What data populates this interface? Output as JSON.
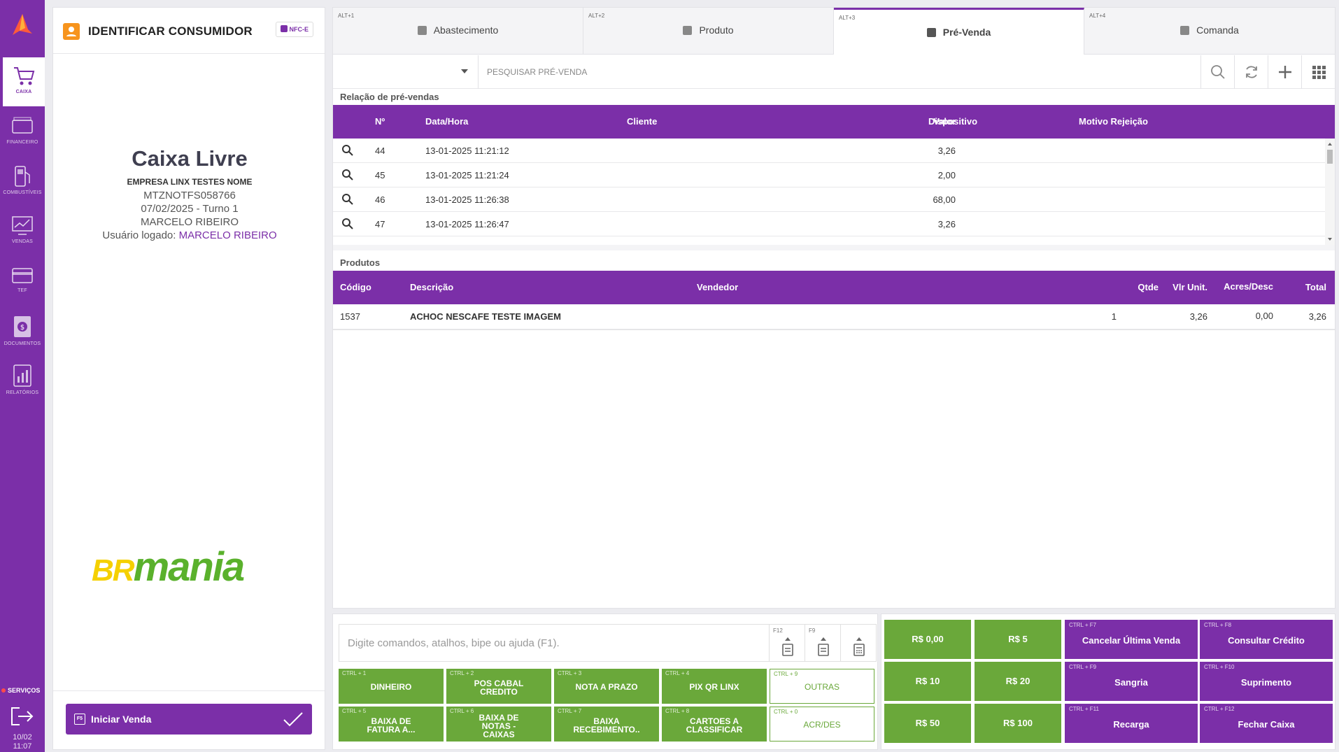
{
  "nav": {
    "items": [
      {
        "label": "CAIXA",
        "icon": "cart-icon"
      },
      {
        "label": "FINANCEIRO",
        "icon": "money-icon"
      },
      {
        "label": "COMBUSTÍVEIS",
        "icon": "fuel-pump-icon"
      },
      {
        "label": "VENDAS",
        "icon": "chart-icon"
      },
      {
        "label": "TEF",
        "icon": "card-icon"
      },
      {
        "label": "DOCUMENTOS",
        "icon": "document-icon"
      },
      {
        "label": "RELATÓRIOS",
        "icon": "report-icon"
      }
    ],
    "services": "SERVIÇOS",
    "date": "10/02",
    "time": "11:07"
  },
  "consumer": {
    "title": "IDENTIFICAR CONSUMIDOR",
    "badge": "NFC-E",
    "status": "Caixa Livre",
    "company": "EMPRESA LINX TESTES NOME",
    "code": "MTZNOTFS058766",
    "shift": "07/02/2025 - Turno 1",
    "operator": "MARCELO RIBEIRO",
    "logged_label": "Usuário logado: ",
    "logged_user": "MARCELO RIBEIRO",
    "brand_a": "BR",
    "brand_b": "mania",
    "start_key": "F5",
    "start_label": "Iniciar Venda"
  },
  "tabs": [
    {
      "shortcut": "ALT+1",
      "label": "Abastecimento"
    },
    {
      "shortcut": "ALT+2",
      "label": "Produto"
    },
    {
      "shortcut": "ALT+3",
      "label": "Pré-Venda"
    },
    {
      "shortcut": "ALT+4",
      "label": "Comanda"
    }
  ],
  "search": {
    "placeholder": "PESQUISAR PRÉ-VENDA"
  },
  "presales": {
    "title": "Relação de pré-vendas",
    "columns": {
      "num": "Nº",
      "date": "Data/Hora",
      "client": "Cliente",
      "value": "Valor",
      "device": "Dispositivo",
      "reason": "Motivo Rejeição"
    },
    "rows": [
      {
        "num": "44",
        "date": "13-01-2025 11:21:12",
        "value": "3,26"
      },
      {
        "num": "45",
        "date": "13-01-2025 11:21:24",
        "value": "2,00"
      },
      {
        "num": "46",
        "date": "13-01-2025 11:26:38",
        "value": "68,00"
      },
      {
        "num": "47",
        "date": "13-01-2025 11:26:47",
        "value": "3,26"
      }
    ]
  },
  "products": {
    "title": "Produtos",
    "columns": {
      "code": "Código",
      "desc": "Descrição",
      "seller": "Vendedor",
      "qty": "Qtde",
      "unit": "Vlr Unit.",
      "disc": "Acres/Desc",
      "total": "Total"
    },
    "rows": [
      {
        "code": "1537",
        "desc": "ACHOC NESCAFE TESTE IMAGEM",
        "qty": "1",
        "unit": "3,26",
        "disc": "0,00",
        "total": "3,26"
      }
    ]
  },
  "command": {
    "placeholder": "Digite comandos, atalhos, bipe ou ajuda (F1).",
    "tool1_key": "F12",
    "tool2_key": "F9",
    "buttons": [
      {
        "key": "CTRL + 1",
        "label": "DINHEIRO"
      },
      {
        "key": "CTRL + 2",
        "label": "POS CABAL CREDITO"
      },
      {
        "key": "CTRL + 3",
        "label": "NOTA A PRAZO"
      },
      {
        "key": "CTRL + 4",
        "label": "PIX QR LINX"
      },
      {
        "key": "CTRL + 9",
        "label": "OUTRAS"
      },
      {
        "key": "CTRL + 5",
        "label": "BAIXA DE FATURA A..."
      },
      {
        "key": "CTRL + 6",
        "label": "BAIXA DE NOTAS - CAIXAS"
      },
      {
        "key": "CTRL + 7",
        "label": "BAIXA RECEBIMENTO.."
      },
      {
        "key": "CTRL + 8",
        "label": "CARTOES A CLASSIFICAR"
      },
      {
        "key": "CTRL + 0",
        "label": "ACR/DES"
      }
    ]
  },
  "cash": {
    "amounts": [
      "R$ 0,00",
      "R$ 5",
      "R$ 10",
      "R$ 20",
      "R$ 50",
      "R$ 100"
    ],
    "actions": [
      {
        "key": "CTRL + F7",
        "label": "Cancelar Última Venda"
      },
      {
        "key": "CTRL + F8",
        "label": "Consultar Crédito"
      },
      {
        "key": "CTRL + F9",
        "label": "Sangria"
      },
      {
        "key": "CTRL + F10",
        "label": "Suprimento"
      },
      {
        "key": "CTRL + F11",
        "label": "Recarga"
      },
      {
        "key": "CTRL + F12",
        "label": "Fechar Caixa"
      }
    ]
  },
  "colors": {
    "primary": "#7b2fa8",
    "green": "#6aa83a",
    "accent": "#f7941d"
  }
}
